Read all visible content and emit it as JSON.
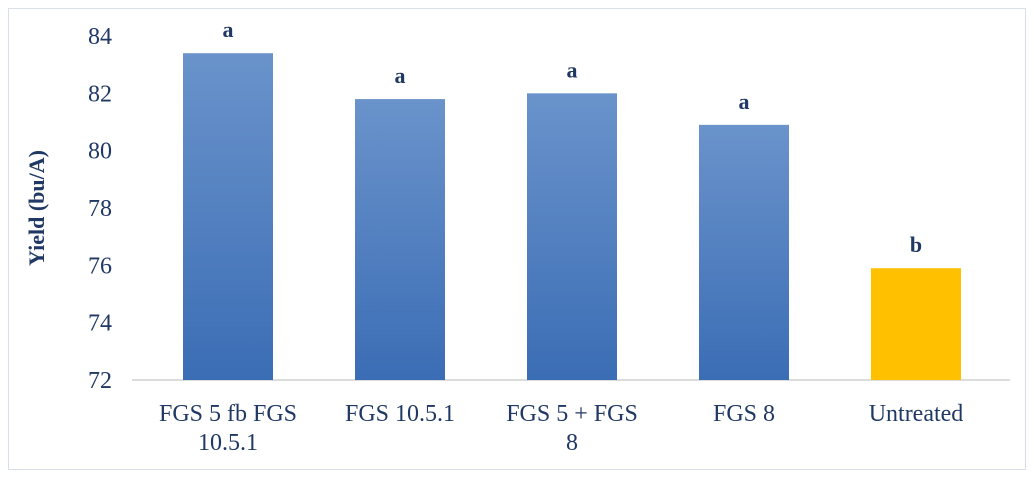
{
  "chart_data": {
    "type": "bar",
    "title": "",
    "xlabel": "",
    "ylabel": "Yield (bu/A)",
    "ylim": [
      72,
      84
    ],
    "yticks": [
      72,
      74,
      76,
      78,
      80,
      82,
      84
    ],
    "grid": false,
    "legend": "none",
    "categories": [
      [
        "FGS 5 fb FGS",
        "10.5.1"
      ],
      [
        "FGS 10.5.1"
      ],
      [
        "FGS 5 + FGS",
        "8"
      ],
      [
        "FGS 8"
      ],
      [
        "Untreated"
      ]
    ],
    "values": [
      83.4,
      81.8,
      82.0,
      80.9,
      75.9
    ],
    "data_labels": [
      "a",
      "a",
      "a",
      "a",
      "b"
    ],
    "colors": {
      "treated_top": "#6a93cb",
      "treated_bottom": "#3b6db5",
      "untreated": "#ffc000",
      "text": "#1f3864",
      "axis": "#d0d0d0"
    }
  }
}
